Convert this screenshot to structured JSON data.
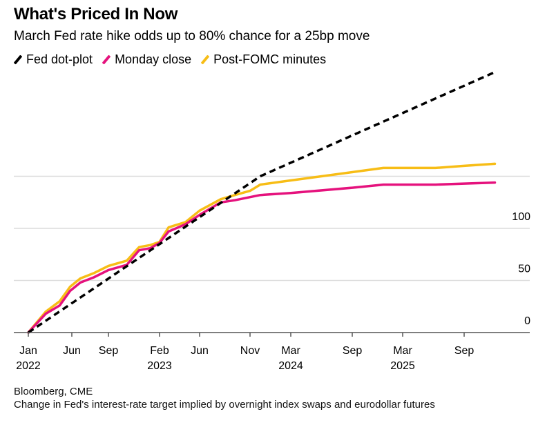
{
  "header": {
    "title": "What's Priced In Now",
    "subtitle": "March Fed rate hike odds up to 80% chance for a 25bp move"
  },
  "legend": [
    {
      "label": "Fed dot-plot",
      "color": "#000000",
      "series": "dot_plot"
    },
    {
      "label": "Monday close",
      "color": "#e5127d",
      "series": "monday_close"
    },
    {
      "label": "Post-FOMC minutes",
      "color": "#f7bd16",
      "series": "post_fomc"
    }
  ],
  "footer": {
    "source": "Bloomberg, CME",
    "note": "Change in Fed's interest-rate target implied by overnight index swaps and eurodollar futures"
  },
  "chart_data": {
    "type": "line",
    "title": "What's Priced In Now",
    "subtitle": "March Fed rate hike odds up to 80% chance for a 25bp move",
    "xlabel": "",
    "ylabel": "",
    "x_unit": "months since Jan 2022",
    "x_ticks": [
      {
        "month": 0,
        "label": "Jan",
        "sublabel": "2022"
      },
      {
        "month": 5,
        "label": "Jun",
        "sublabel": ""
      },
      {
        "month": 8,
        "label": "Sep",
        "sublabel": ""
      },
      {
        "month": 13,
        "label": "Feb",
        "sublabel": "2023"
      },
      {
        "month": 17,
        "label": "Jun",
        "sublabel": ""
      },
      {
        "month": 22,
        "label": "Nov",
        "sublabel": ""
      },
      {
        "month": 26,
        "label": "Mar",
        "sublabel": "2024"
      },
      {
        "month": 32,
        "label": "Sep",
        "sublabel": ""
      },
      {
        "month": 38,
        "label": "Mar",
        "sublabel": "2025"
      },
      {
        "month": 44,
        "label": "Sep",
        "sublabel": ""
      }
    ],
    "y_ticks": [
      {
        "value": 0,
        "label": "0"
      },
      {
        "value": 50,
        "label": "50"
      },
      {
        "value": 100,
        "label": "100"
      },
      {
        "value": 150,
        "label": ""
      }
    ],
    "ylim": [
      0,
      250
    ],
    "xlim": [
      0,
      48.5
    ],
    "grid": true,
    "legend_position": "top-left",
    "y_axis_position": "right",
    "series": [
      {
        "name": "Fed dot-plot",
        "key": "dot_plot",
        "color": "#000000",
        "style": "dashed",
        "x": [
          0,
          23,
          47
        ],
        "y": [
          0,
          150,
          250
        ]
      },
      {
        "name": "Monday close",
        "key": "monday_close",
        "color": "#e5127d",
        "style": "solid",
        "x": [
          0,
          2.0,
          3.6,
          4.8,
          5.7,
          6.8,
          8.0,
          9.8,
          11.0,
          12.1,
          13.0,
          13.9,
          15.6,
          17.0,
          19.1,
          20.5,
          22.0,
          23.0,
          26.0,
          32.0,
          35.7,
          38.0,
          41.2,
          44.0,
          47.0
        ],
        "y": [
          0,
          18,
          26,
          40,
          48,
          53,
          60,
          65,
          79,
          81,
          86,
          97,
          104,
          113,
          125,
          127,
          130,
          132,
          134,
          139,
          142,
          142,
          142,
          143,
          144
        ]
      },
      {
        "name": "Post-FOMC minutes",
        "key": "post_fomc",
        "color": "#f7bd16",
        "style": "solid",
        "x": [
          0,
          2.0,
          3.6,
          4.8,
          5.7,
          6.8,
          8.0,
          9.8,
          11.0,
          12.1,
          13.0,
          13.9,
          15.6,
          17.0,
          19.1,
          20.5,
          22.0,
          23.0,
          26.0,
          32.0,
          35.7,
          38.0,
          41.2,
          44.0,
          47.0
        ],
        "y": [
          0,
          20,
          30,
          44,
          52,
          57,
          64,
          69,
          82,
          84,
          87,
          101,
          106,
          117,
          128,
          132,
          136,
          142,
          146,
          154,
          158,
          158,
          158,
          160,
          162
        ]
      }
    ]
  }
}
